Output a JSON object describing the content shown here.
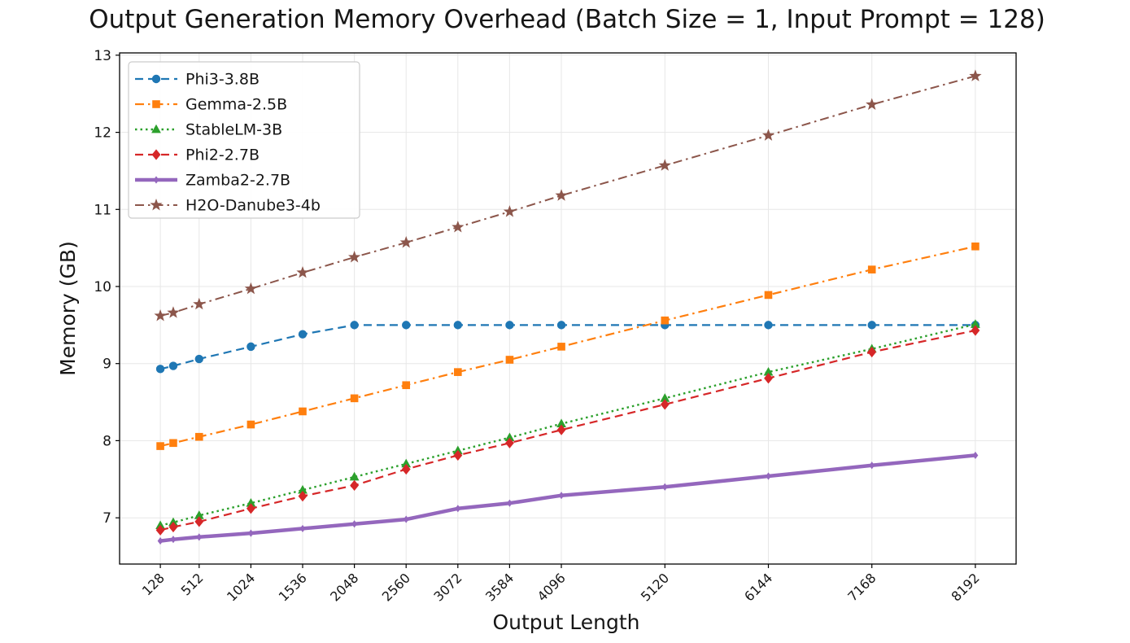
{
  "chart_data": {
    "type": "line",
    "title": "Output Generation Memory Overhead (Batch Size = 1, Input Prompt = 128)",
    "xlabel": "Output Length",
    "ylabel": "Memory (GB)",
    "x": [
      128,
      256,
      512,
      1024,
      1536,
      2048,
      2560,
      3072,
      3584,
      4096,
      5120,
      6144,
      7168,
      8192
    ],
    "x_ticks": [
      128,
      512,
      1024,
      1536,
      2048,
      2560,
      3072,
      3584,
      4096,
      5120,
      6144,
      7168,
      8192
    ],
    "x_tick_labels": [
      "128",
      "512",
      "1024",
      "1536",
      "2048",
      "2560",
      "3072",
      "3584",
      "4096",
      "5120",
      "6144",
      "7168",
      "8192"
    ],
    "y_ticks": [
      7,
      8,
      9,
      10,
      11,
      12,
      13
    ],
    "xlim": [
      -275,
      8595
    ],
    "ylim": [
      6.4,
      13.03
    ],
    "grid": true,
    "legend_position": "upper-left",
    "series": [
      {
        "name": "Phi3-3.8B",
        "color": "#1f77b4",
        "linestyle": "dashed",
        "marker": "circle",
        "linewidth": 2.2,
        "values": [
          8.93,
          8.97,
          9.06,
          9.22,
          9.38,
          9.5,
          9.5,
          9.5,
          9.5,
          9.5,
          9.5,
          9.5,
          9.5,
          9.5
        ]
      },
      {
        "name": "Gemma-2.5B",
        "color": "#ff7f0e",
        "linestyle": "dashdot",
        "marker": "square",
        "linewidth": 2.2,
        "values": [
          7.93,
          7.97,
          8.05,
          8.21,
          8.38,
          8.55,
          8.72,
          8.89,
          9.05,
          9.22,
          9.56,
          9.89,
          10.22,
          10.52
        ]
      },
      {
        "name": "StableLM-3B",
        "color": "#2ca02c",
        "linestyle": "dotted",
        "marker": "triangle",
        "linewidth": 2.4,
        "values": [
          6.9,
          6.94,
          7.03,
          7.19,
          7.36,
          7.53,
          7.7,
          7.87,
          8.04,
          8.22,
          8.55,
          8.89,
          9.19,
          9.51
        ]
      },
      {
        "name": "Phi2-2.7B",
        "color": "#d62728",
        "linestyle": "dashed",
        "marker": "diamond",
        "linewidth": 2.2,
        "values": [
          6.84,
          6.88,
          6.95,
          7.12,
          7.28,
          7.42,
          7.63,
          7.81,
          7.97,
          8.14,
          8.47,
          8.81,
          9.15,
          9.43
        ]
      },
      {
        "name": "Zamba2-2.7B",
        "color": "#9467bd",
        "linestyle": "solid",
        "marker": "thin-diamond",
        "linewidth": 4.5,
        "values": [
          6.7,
          6.72,
          6.75,
          6.8,
          6.86,
          6.92,
          6.98,
          7.12,
          7.19,
          7.29,
          7.4,
          7.54,
          7.68,
          7.81
        ]
      },
      {
        "name": "H2O-Danube3-4b",
        "color": "#8c564b",
        "linestyle": "dashdot",
        "marker": "star",
        "linewidth": 2.0,
        "values": [
          9.62,
          9.66,
          9.77,
          9.97,
          10.18,
          10.38,
          10.57,
          10.77,
          10.97,
          11.18,
          11.57,
          11.96,
          12.36,
          12.73
        ]
      }
    ]
  }
}
